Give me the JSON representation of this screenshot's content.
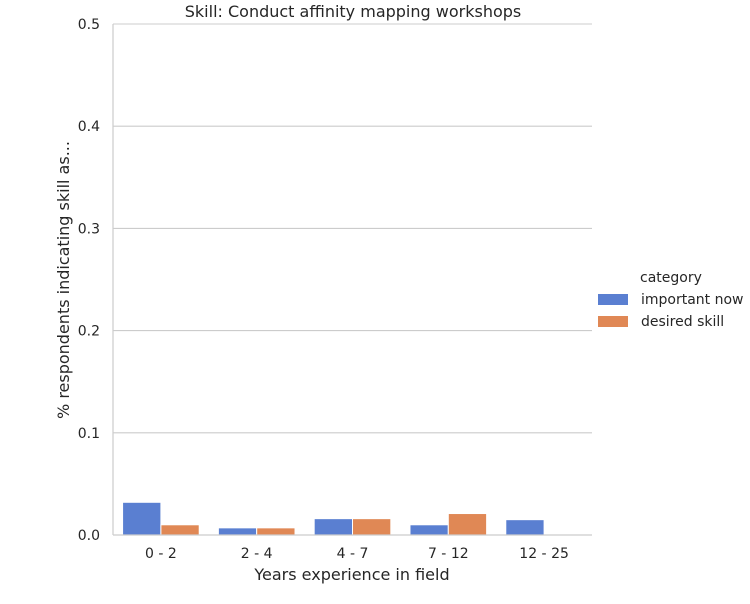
{
  "chart_data": {
    "type": "bar",
    "title": "Skill: Conduct affinity mapping workshops",
    "xlabel": "Years experience in field",
    "ylabel": "% respondents indicating skill as...",
    "categories": [
      "0 - 2",
      "2 - 4",
      "4 - 7",
      "7 - 12",
      "12 - 25"
    ],
    "series": [
      {
        "name": "important now",
        "color": "#5a7fd1",
        "values": [
          0.032,
          0.007,
          0.016,
          0.01,
          0.015
        ]
      },
      {
        "name": "desired skill",
        "color": "#e08855",
        "values": [
          0.01,
          0.007,
          0.016,
          0.021,
          0.0
        ]
      }
    ],
    "ylim": [
      0,
      0.5
    ],
    "yticks": [
      0.0,
      0.1,
      0.2,
      0.3,
      0.4,
      0.5
    ],
    "ytick_labels": [
      "0.0",
      "0.1",
      "0.2",
      "0.3",
      "0.4",
      "0.5"
    ],
    "grid": true,
    "legend": {
      "title": "category",
      "placement": "right"
    }
  }
}
